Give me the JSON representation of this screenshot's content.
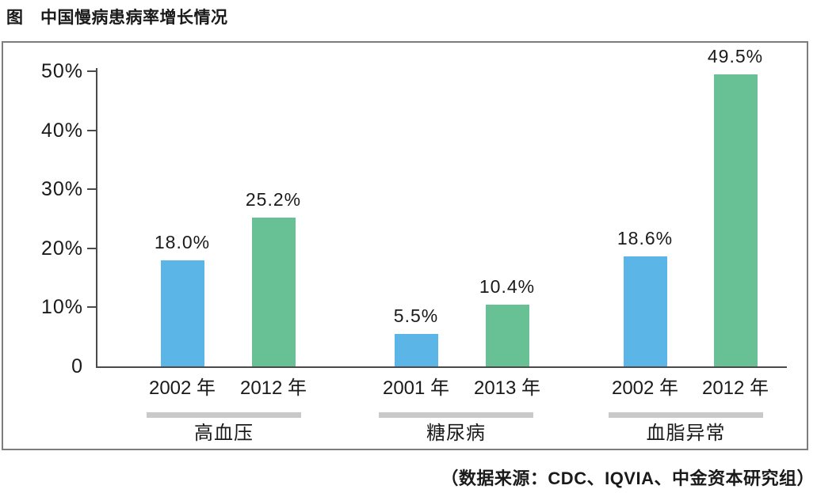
{
  "page": {
    "title": "图　中国慢病患病率增长情况",
    "source": "（数据来源：CDC、IQVIA、中金资本研究组）"
  },
  "chart_data": {
    "type": "bar",
    "title": "图　中国慢病患病率增长情况",
    "ylim": [
      0,
      50
    ],
    "grid": false,
    "legend": false,
    "y_ticks": [
      {
        "value": 50,
        "label": "50%"
      },
      {
        "value": 40,
        "label": "40%"
      },
      {
        "value": 30,
        "label": "30%"
      },
      {
        "value": 20,
        "label": "20%"
      },
      {
        "value": 10,
        "label": "10%"
      },
      {
        "value": 0,
        "label": "0"
      }
    ],
    "series_colors": {
      "earlier_year": "#5bb5e6",
      "later_year": "#68c095"
    },
    "groups": [
      {
        "name": "高血压",
        "bars": [
          {
            "x_label": "2002 年",
            "value": 18.0,
            "value_label": "18.0%",
            "series": "earlier_year",
            "color": "#5bb5e6"
          },
          {
            "x_label": "2012 年",
            "value": 25.2,
            "value_label": "25.2%",
            "series": "later_year",
            "color": "#68c095"
          }
        ]
      },
      {
        "name": "糖尿病",
        "bars": [
          {
            "x_label": "2001 年",
            "value": 5.5,
            "value_label": "5.5%",
            "series": "earlier_year",
            "color": "#5bb5e6"
          },
          {
            "x_label": "2013 年",
            "value": 10.4,
            "value_label": "10.4%",
            "series": "later_year",
            "color": "#68c095"
          }
        ]
      },
      {
        "name": "血脂异常",
        "bars": [
          {
            "x_label": "2002 年",
            "value": 18.6,
            "value_label": "18.6%",
            "series": "earlier_year",
            "color": "#5bb5e6"
          },
          {
            "x_label": "2012 年",
            "value": 49.5,
            "value_label": "49.5%",
            "series": "later_year",
            "color": "#68c095"
          }
        ]
      }
    ],
    "source": "（数据来源：CDC、IQVIA、中金资本研究组）"
  }
}
